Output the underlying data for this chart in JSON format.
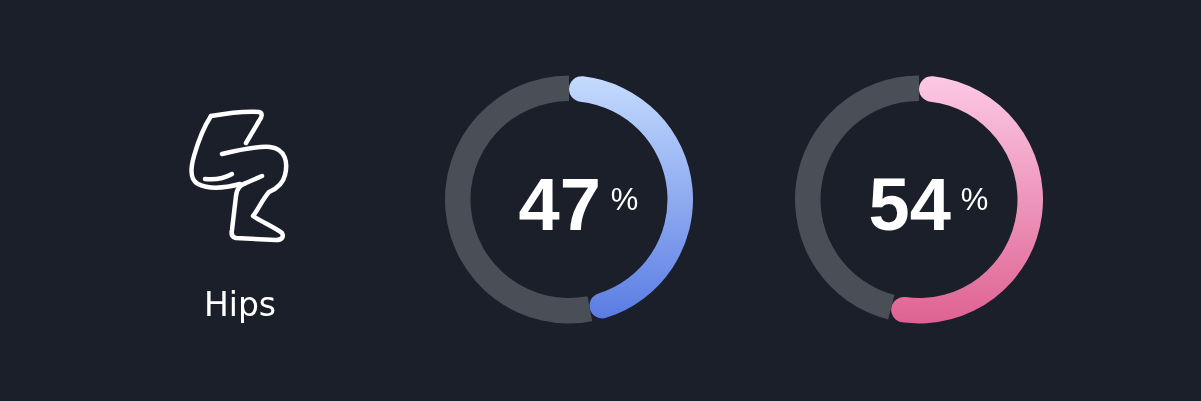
{
  "chart_data": [
    {
      "type": "other",
      "title": "Hips"
    },
    {
      "type": "donut",
      "categories": [
        null,
        null
      ],
      "values": [
        47,
        53
      ],
      "colors": [
        "#8dabf3",
        "#4a4e57"
      ],
      "value_labels": [
        "47%",
        null
      ]
    },
    {
      "type": "donut",
      "categories": [
        null,
        null
      ],
      "values": [
        54,
        46
      ],
      "colors": [
        "#f093bb",
        "#4a4e57"
      ],
      "value_labels": [
        "54%",
        null
      ]
    }
  ]
}
